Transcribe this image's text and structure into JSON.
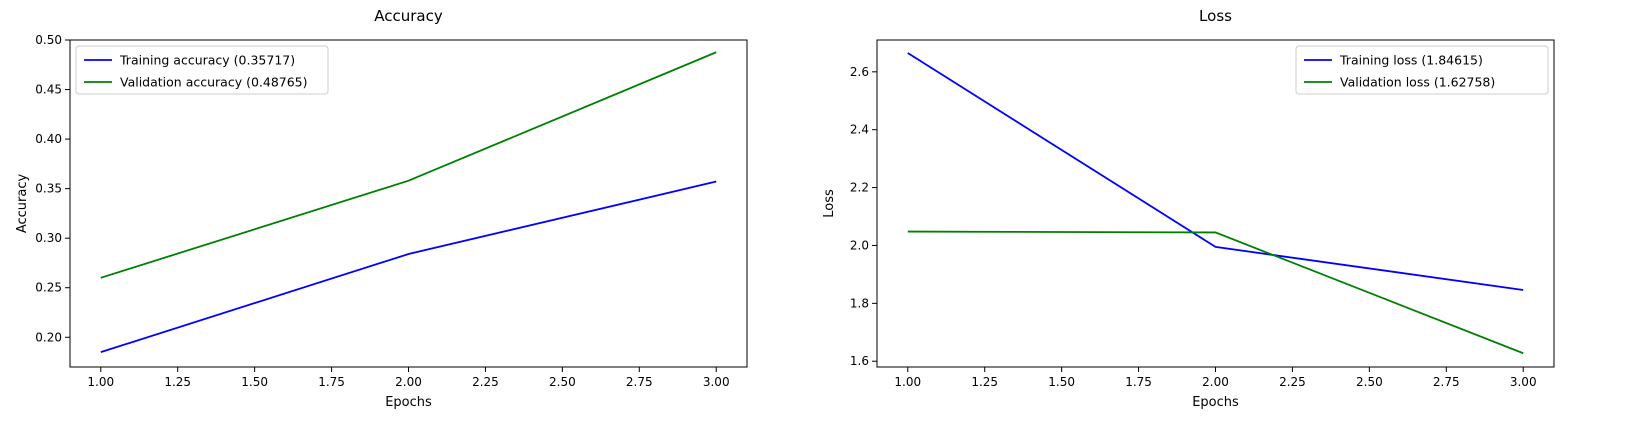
{
  "chart_data": [
    {
      "type": "line",
      "title": "Accuracy",
      "xlabel": "Epochs",
      "ylabel": "Accuracy",
      "x": [
        1,
        2,
        3
      ],
      "xlim": [
        0.9,
        3.1
      ],
      "ylim": [
        0.17,
        0.5
      ],
      "xticks": [
        1.0,
        1.25,
        1.5,
        1.75,
        2.0,
        2.25,
        2.5,
        2.75,
        3.0
      ],
      "xtick_labels": [
        "1.00",
        "1.25",
        "1.50",
        "1.75",
        "2.00",
        "2.25",
        "2.50",
        "2.75",
        "3.00"
      ],
      "yticks": [
        0.2,
        0.25,
        0.3,
        0.35,
        0.4,
        0.45,
        0.5
      ],
      "ytick_labels": [
        "0.20",
        "0.25",
        "0.30",
        "0.35",
        "0.40",
        "0.45",
        "0.50"
      ],
      "grid": false,
      "legend_position": "top-left",
      "series": [
        {
          "name": "Training accuracy (0.35717)",
          "color": "#0000ff",
          "values": [
            0.185,
            0.284,
            0.35717
          ]
        },
        {
          "name": "Validation accuracy (0.48765)",
          "color": "#008000",
          "values": [
            0.26,
            0.358,
            0.48765
          ]
        }
      ]
    },
    {
      "type": "line",
      "title": "Loss",
      "xlabel": "Epochs",
      "ylabel": "Loss",
      "x": [
        1,
        2,
        3
      ],
      "xlim": [
        0.9,
        3.1
      ],
      "ylim": [
        1.58,
        2.71
      ],
      "xticks": [
        1.0,
        1.25,
        1.5,
        1.75,
        2.0,
        2.25,
        2.5,
        2.75,
        3.0
      ],
      "xtick_labels": [
        "1.00",
        "1.25",
        "1.50",
        "1.75",
        "2.00",
        "2.25",
        "2.50",
        "2.75",
        "3.00"
      ],
      "yticks": [
        1.6,
        1.8,
        2.0,
        2.2,
        2.4,
        2.6
      ],
      "ytick_labels": [
        "1.6",
        "1.8",
        "2.0",
        "2.2",
        "2.4",
        "2.6"
      ],
      "grid": false,
      "legend_position": "top-right",
      "series": [
        {
          "name": "Training loss (1.84615)",
          "color": "#0000ff",
          "values": [
            2.665,
            1.995,
            1.84615
          ]
        },
        {
          "name": "Validation loss (1.62758)",
          "color": "#008000",
          "values": [
            2.048,
            2.045,
            1.62758
          ]
        }
      ]
    }
  ]
}
